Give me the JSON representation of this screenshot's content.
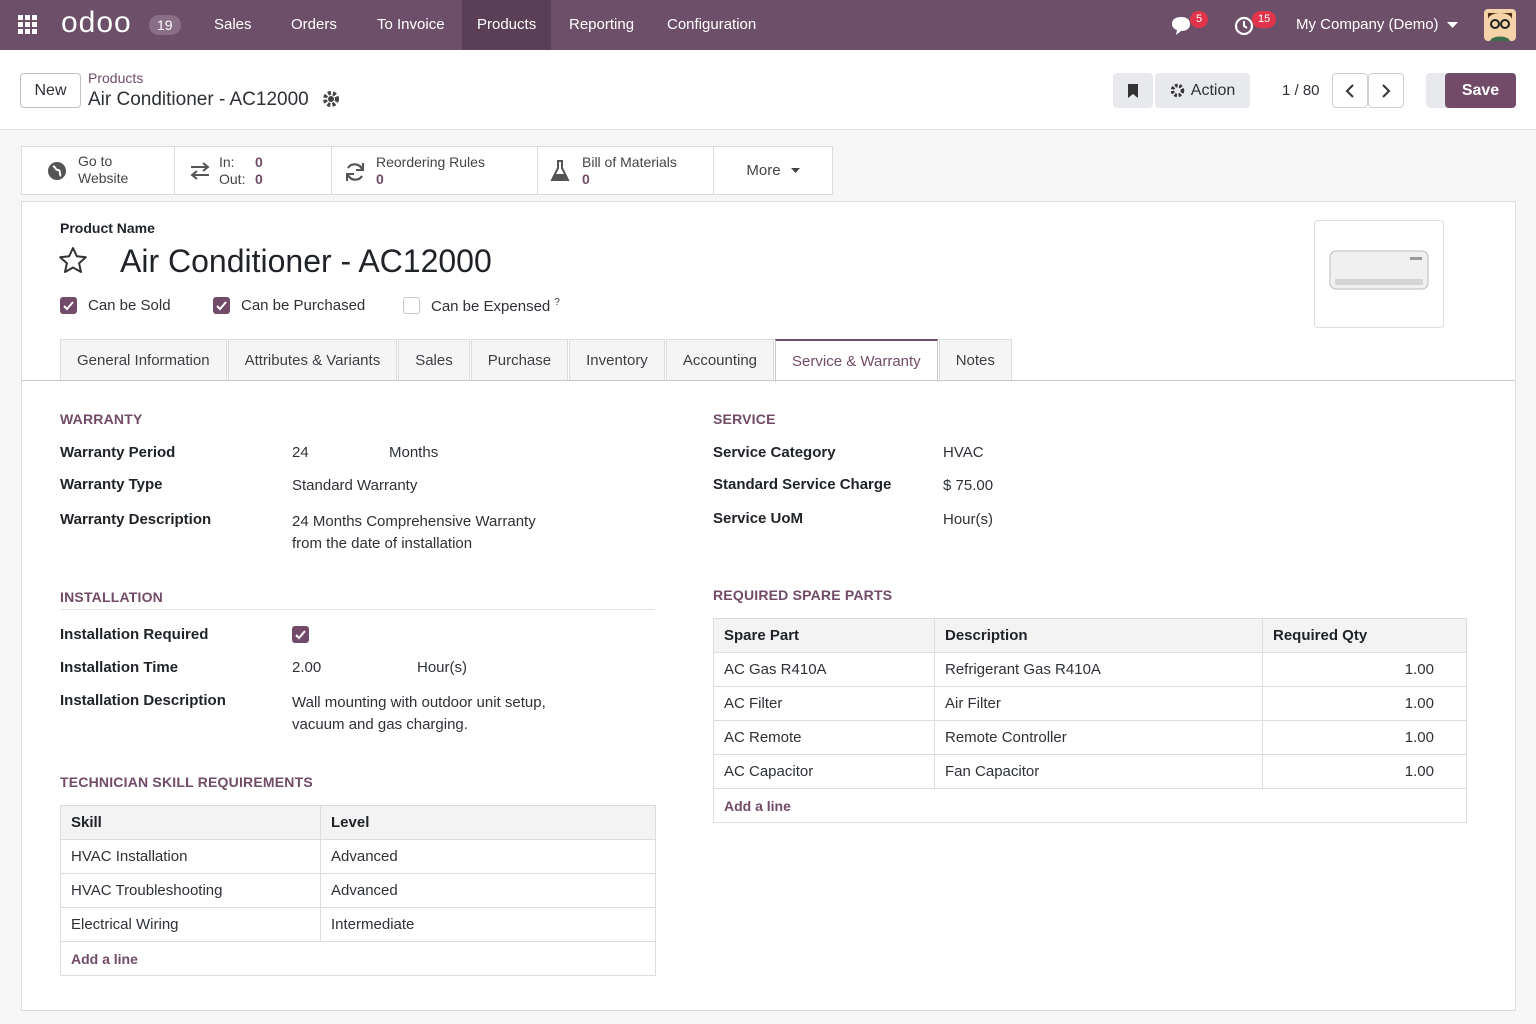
{
  "navbar": {
    "logo": "odoo",
    "version": "19",
    "menu": [
      "Sales",
      "Orders",
      "To Invoice",
      "Products",
      "Reporting",
      "Configuration"
    ],
    "active_menu": 3,
    "messages_badge": "5",
    "activities_badge": "15",
    "company": "My Company (Demo)"
  },
  "control_panel": {
    "new_button": "New",
    "breadcrumb": "Products",
    "record_name": "Air Conditioner - AC12000",
    "action_button": "Action",
    "pager": "1 / 80",
    "save_button": "Save"
  },
  "smart_buttons": {
    "website": "Go to Website",
    "in_label": "In:",
    "in_value": "0",
    "out_label": "Out:",
    "out_value": "0",
    "reordering_label": "Reordering Rules",
    "reordering_value": "0",
    "bom_label": "Bill of Materials",
    "bom_value": "0",
    "more": "More"
  },
  "form": {
    "name_label": "Product Name",
    "name": "Air Conditioner - AC12000",
    "checkboxes": [
      {
        "label": "Can be Sold",
        "checked": true
      },
      {
        "label": "Can be Purchased",
        "checked": true
      },
      {
        "label": "Can be Expensed",
        "checked": false,
        "help": "?"
      }
    ],
    "tabs": [
      "General Information",
      "Attributes & Variants",
      "Sales",
      "Purchase",
      "Inventory",
      "Accounting",
      "Service & Warranty",
      "Notes"
    ],
    "active_tab": 6
  },
  "warranty": {
    "title": "WARRANTY",
    "period_label": "Warranty Period",
    "period_value": "24",
    "period_unit": "Months",
    "type_label": "Warranty Type",
    "type_value": "Standard Warranty",
    "description_label": "Warranty Description",
    "description_value": "24 Months Comprehensive Warranty from the date of installation"
  },
  "service": {
    "title": "SERVICE",
    "category_label": "Service Category",
    "category_value": "HVAC",
    "charge_label": "Standard Service Charge",
    "charge_value": "$ 75.00",
    "uom_label": "Service UoM",
    "uom_value": "Hour(s)"
  },
  "installation": {
    "title": "INSTALLATION",
    "required_label": "Installation Required",
    "required_checked": true,
    "time_label": "Installation Time",
    "time_value": "2.00",
    "time_unit": "Hour(s)",
    "description_label": "Installation Description",
    "description_value": "Wall mounting with outdoor unit setup, vacuum and gas charging."
  },
  "skills": {
    "title": "TECHNICIAN SKILL REQUIREMENTS",
    "headers": [
      "Skill",
      "Level"
    ],
    "rows": [
      [
        "HVAC Installation",
        "Advanced"
      ],
      [
        "HVAC Troubleshooting",
        "Advanced"
      ],
      [
        "Electrical Wiring",
        "Intermediate"
      ]
    ],
    "add_line": "Add a line"
  },
  "spare_parts": {
    "title": "REQUIRED SPARE PARTS",
    "headers": [
      "Spare Part",
      "Description",
      "Required Qty"
    ],
    "rows": [
      [
        "AC Gas R410A",
        "Refrigerant Gas R410A",
        "1.00"
      ],
      [
        "AC Filter",
        "Air Filter",
        "1.00"
      ],
      [
        "AC Remote",
        "Remote Controller",
        "1.00"
      ],
      [
        "AC Capacitor",
        "Fan Capacitor",
        "1.00"
      ]
    ],
    "add_line": "Add a line"
  }
}
